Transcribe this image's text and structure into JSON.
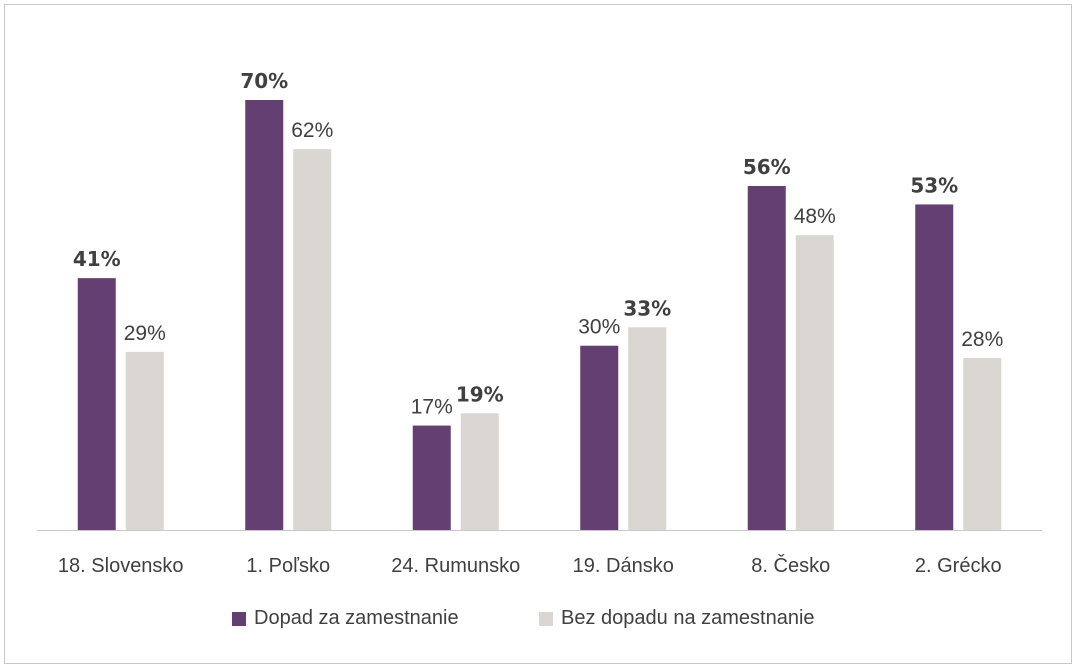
{
  "chart_data": {
    "type": "bar",
    "categories": [
      "18. Slovensko",
      "1. Poľsko",
      "24. Rumunsko",
      "19. Dánsko",
      "8. Česko",
      "2. Grécko"
    ],
    "series": [
      {
        "name": "Dopad za zamestnanie",
        "color": "#643f72",
        "values": [
          41,
          70,
          17,
          30,
          56,
          53
        ],
        "labels": [
          "41%",
          "70%",
          "17%",
          "30%",
          "56%",
          "53%"
        ],
        "bold": [
          true,
          true,
          false,
          false,
          true,
          true
        ]
      },
      {
        "name": "Bez dopadu na zamestnanie",
        "color": "#dad7d3",
        "values": [
          29,
          62,
          19,
          33,
          48,
          28
        ],
        "labels": [
          "29%",
          "62%",
          "19%",
          "33%",
          "48%",
          "28%"
        ],
        "bold": [
          false,
          false,
          true,
          true,
          false,
          false
        ]
      }
    ],
    "ylim": [
      0,
      70
    ],
    "grid": false,
    "legend_position": "bottom",
    "axis_color": "#c8c8c8"
  }
}
